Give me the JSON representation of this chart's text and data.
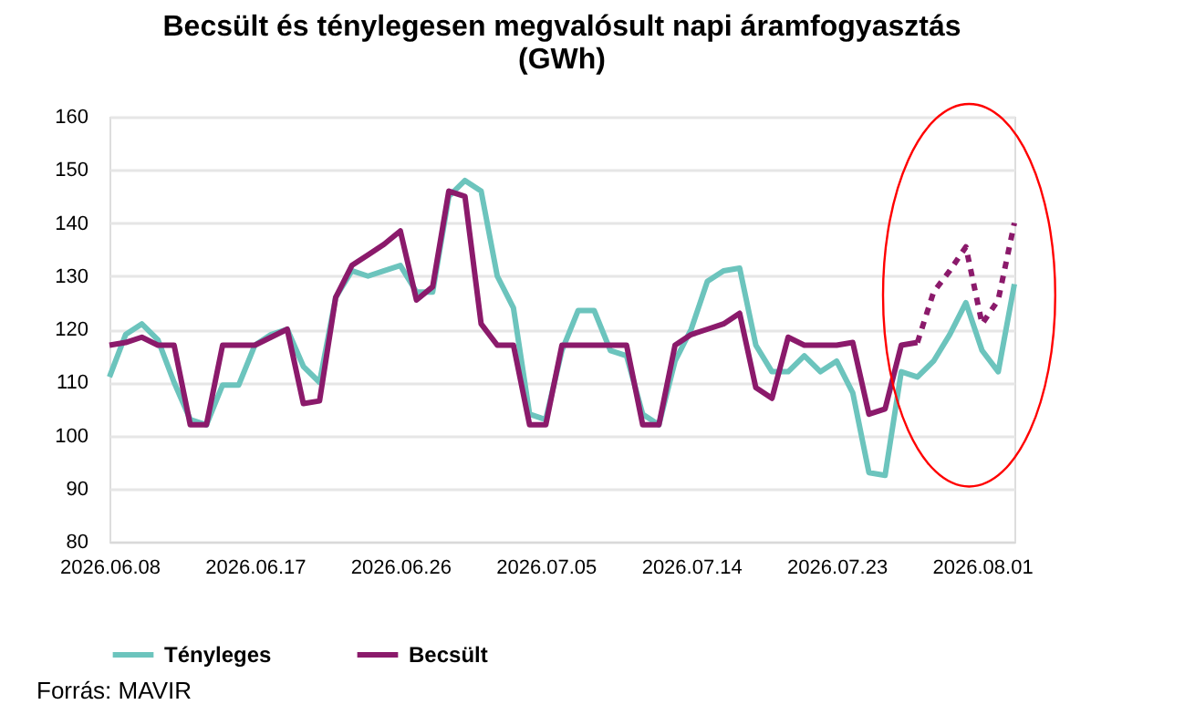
{
  "chart_data": {
    "type": "line",
    "title": "Becsült és ténylegesen megvalósult napi áramfogyasztás\n(GWh)",
    "x": [
      "2026-06-08",
      "2026-06-09",
      "2026-06-10",
      "2026-06-11",
      "2026-06-12",
      "2026-06-13",
      "2026-06-14",
      "2026-06-15",
      "2026-06-16",
      "2026-06-17",
      "2026-06-18",
      "2026-06-19",
      "2026-06-20",
      "2026-06-21",
      "2026-06-22",
      "2026-06-23",
      "2026-06-24",
      "2026-06-25",
      "2026-06-26",
      "2026-06-27",
      "2026-06-28",
      "2026-06-29",
      "2026-06-30",
      "2026-07-01",
      "2026-07-02",
      "2026-07-03",
      "2026-07-04",
      "2026-07-05",
      "2026-07-06",
      "2026-07-07",
      "2026-07-08",
      "2026-07-09",
      "2026-07-10",
      "2026-07-11",
      "2026-07-12",
      "2026-07-13",
      "2026-07-14",
      "2026-07-15",
      "2026-07-16",
      "2026-07-17",
      "2026-07-18",
      "2026-07-19",
      "2026-07-20",
      "2026-07-21",
      "2026-07-22",
      "2026-07-23",
      "2026-07-24",
      "2026-07-25",
      "2026-07-26",
      "2026-07-27",
      "2026-07-28",
      "2026-07-29",
      "2026-07-30",
      "2026-07-31",
      "2026-08-01",
      "2026-08-02",
      "2026-08-03"
    ],
    "series": [
      {
        "name": "Tényleges",
        "color": "#6cc4bd",
        "line_style": "solid",
        "values": [
          111,
          119,
          121,
          118,
          110,
          103,
          102,
          109.5,
          109.5,
          117,
          119,
          120,
          113,
          110,
          126,
          131,
          130,
          131,
          132,
          127,
          127,
          145,
          148,
          146,
          130,
          124,
          104,
          103,
          116,
          123.5,
          123.5,
          116,
          115,
          104,
          102,
          114,
          120,
          129,
          131,
          131.5,
          117,
          112,
          112,
          115,
          112,
          114,
          108,
          93,
          92.5,
          112,
          111,
          114,
          119,
          125,
          116,
          112,
          128.5
        ]
      },
      {
        "name": "Becsült",
        "color": "#8b1a6b",
        "line_style": "solid",
        "values": [
          117,
          117.5,
          118.5,
          117,
          117,
          102,
          102,
          117,
          117,
          117,
          118.5,
          120,
          106,
          106.5,
          126,
          132,
          134,
          136,
          138.5,
          125.5,
          128,
          146,
          145,
          121,
          117,
          117,
          102,
          102,
          117,
          117,
          117,
          117,
          117,
          102,
          102,
          117,
          119,
          120,
          121,
          123,
          109,
          107,
          118.5,
          117,
          117,
          117,
          117.5,
          104,
          105,
          117,
          117.5,
          null,
          null,
          null,
          null,
          null,
          null
        ]
      },
      {
        "color": "#8b1a6b",
        "line_style": "dashed",
        "x": [
          "2026-07-28",
          "2026-07-29",
          "2026-07-30",
          "2026-07-31",
          "2026-08-01",
          "2026-08-02",
          "2026-08-03"
        ],
        "values": [
          117.5,
          127,
          131,
          135.5,
          121,
          125.5,
          140
        ]
      }
    ],
    "xlim": [
      "2026-06-08",
      "2026-08-03"
    ],
    "xticks": [
      {
        "value": "2026-06-08",
        "label": "2026.06.08"
      },
      {
        "value": "2026-06-17",
        "label": "2026.06.17"
      },
      {
        "value": "2026-06-26",
        "label": "2026.06.26"
      },
      {
        "value": "2026-07-05",
        "label": "2026.07.05"
      },
      {
        "value": "2026-07-14",
        "label": "2026.07.14"
      },
      {
        "value": "2026-07-23",
        "label": "2026.07.23"
      },
      {
        "value": "2026-08-01",
        "label": "2026.08.01"
      }
    ],
    "ylim": [
      80,
      160
    ],
    "yticks": [
      80,
      90,
      100,
      110,
      120,
      130,
      140,
      150,
      160
    ],
    "grid": "y",
    "legend": "bottom",
    "marker": "none",
    "annotations": [
      "Forrás: MAVIR"
    ]
  }
}
